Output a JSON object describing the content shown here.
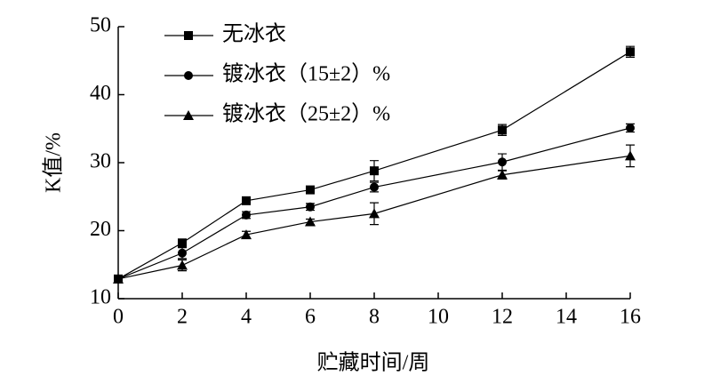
{
  "chart_data": {
    "type": "line",
    "x_label": "贮藏时间/周",
    "y_label": "K值/%",
    "x": [
      0,
      2,
      4,
      6,
      8,
      12,
      16
    ],
    "xlim": [
      0,
      16
    ],
    "xticks": [
      0,
      2,
      4,
      6,
      8,
      10,
      12,
      14,
      16
    ],
    "ylim": [
      10,
      50
    ],
    "yticks": [
      10,
      20,
      30,
      40,
      50
    ],
    "legend": "upper-left",
    "series": [
      {
        "name": "无冰衣",
        "color": "#000000",
        "marker": "square",
        "values": [
          12.9,
          18.2,
          24.4,
          26.0,
          28.8,
          34.8,
          46.3
        ],
        "errors": [
          0.4,
          0.5,
          0.4,
          0.5,
          1.5,
          0.8,
          0.8
        ]
      },
      {
        "name": "镀冰衣（15±2）%",
        "color": "#000000",
        "marker": "circle",
        "values": [
          12.9,
          16.7,
          22.3,
          23.5,
          26.4,
          30.1,
          35.1
        ],
        "errors": [
          0.3,
          0.8,
          0.5,
          0.5,
          0.7,
          1.2,
          0.6
        ]
      },
      {
        "name": "镀冰衣（25±2）%",
        "color": "#000000",
        "marker": "triangle",
        "values": [
          12.9,
          14.9,
          19.4,
          21.3,
          22.5,
          28.2,
          31.0
        ],
        "errors": [
          0.3,
          0.8,
          0.5,
          0.4,
          1.6,
          0.6,
          1.6
        ]
      }
    ]
  }
}
